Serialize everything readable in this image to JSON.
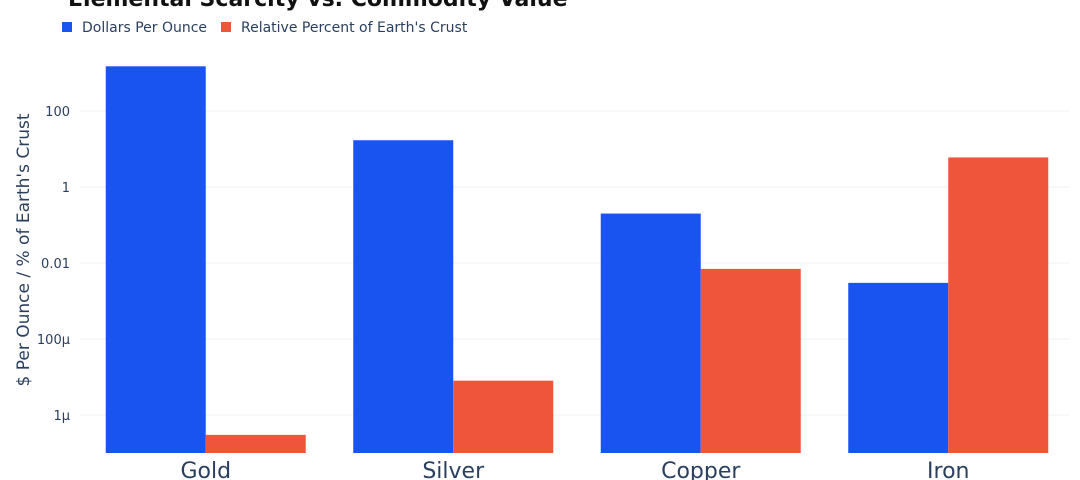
{
  "chart_data": {
    "type": "bar",
    "title": "Elemental Scarcity vs. Commodity Value",
    "ylabel": "$ Per Ounce / % of Earth's Crust",
    "yscale": "log",
    "ylim": [
      1e-07,
      10000
    ],
    "grid": true,
    "legend_position": "top-left",
    "categories": [
      "Gold",
      "Silver",
      "Copper",
      "Iron"
    ],
    "yticks": [
      {
        "value": 100,
        "label": "100"
      },
      {
        "value": 1,
        "label": "1"
      },
      {
        "value": 0.01,
        "label": "0.01"
      },
      {
        "value": 0.0001,
        "label": "100μ"
      },
      {
        "value": 1e-06,
        "label": "1μ"
      }
    ],
    "series": [
      {
        "name": "Dollars Per Ounce",
        "color": "#1a54f0",
        "values": [
          1500,
          17,
          0.2,
          0.003
        ]
      },
      {
        "name": "Relative Percent of Earth's Crust",
        "color": "#ef553b",
        "values": [
          3e-07,
          8e-06,
          0.007,
          6
        ]
      }
    ]
  }
}
